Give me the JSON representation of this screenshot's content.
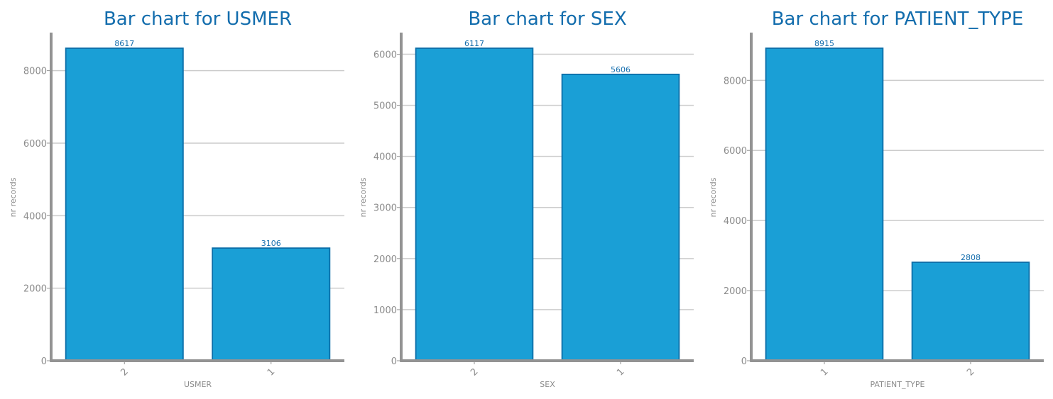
{
  "colors": {
    "bar_fill": "#1a9fd6",
    "bar_edge": "#0b6ea8",
    "title": "#136dad",
    "axis": "#939393",
    "tick_label": "#8c8c8c",
    "grid": "#cccccc",
    "value_label": "#136dad"
  },
  "chart_data": [
    {
      "type": "bar",
      "title": "Bar chart for USMER",
      "xlabel": "USMER",
      "ylabel": "nr records",
      "categories": [
        "2",
        "1"
      ],
      "values": [
        8617,
        3106
      ],
      "yticks": [
        0,
        2000,
        4000,
        6000,
        8000
      ],
      "ylim": [
        0,
        9048
      ],
      "grid": "horizontal",
      "value_labels": true
    },
    {
      "type": "bar",
      "title": "Bar chart for SEX",
      "xlabel": "SEX",
      "ylabel": "nr records",
      "categories": [
        "2",
        "1"
      ],
      "values": [
        6117,
        5606
      ],
      "yticks": [
        0,
        1000,
        2000,
        3000,
        4000,
        5000,
        6000
      ],
      "ylim": [
        0,
        6423
      ],
      "grid": "horizontal",
      "value_labels": true
    },
    {
      "type": "bar",
      "title": "Bar chart for PATIENT_TYPE",
      "xlabel": "PATIENT_TYPE",
      "ylabel": "nr records",
      "categories": [
        "1",
        "2"
      ],
      "values": [
        8915,
        2808
      ],
      "yticks": [
        0,
        2000,
        4000,
        6000,
        8000
      ],
      "ylim": [
        0,
        9361
      ],
      "grid": "horizontal",
      "value_labels": true
    }
  ]
}
